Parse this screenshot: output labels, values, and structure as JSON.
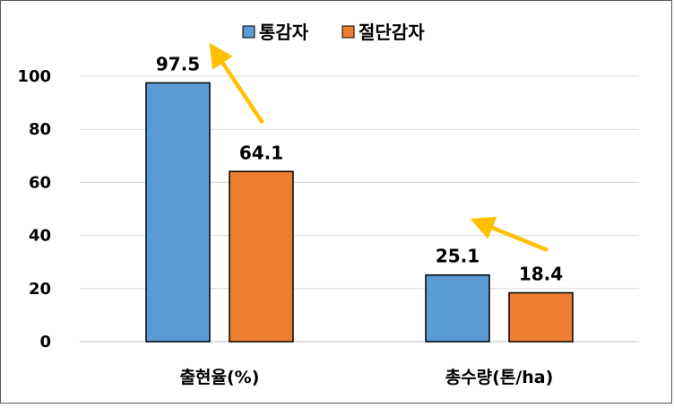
{
  "chart_data": {
    "type": "bar",
    "categories": [
      "출현율(%)",
      "총수량(톤/ha)"
    ],
    "series": [
      {
        "name": "통감자",
        "values": [
          97.5,
          25.1
        ],
        "color": "#5B9BD5"
      },
      {
        "name": "절단감자",
        "values": [
          64.1,
          18.4
        ],
        "color": "#ED7D31"
      }
    ],
    "ylim": [
      0,
      100
    ],
    "yticks": [
      0,
      20,
      40,
      60,
      80,
      100
    ],
    "grid": true,
    "legend": "top-center",
    "data_labels": [
      "97.5",
      "64.1",
      "25.1",
      "18.4"
    ],
    "annotations": [
      {
        "type": "arrow",
        "color": "#FFC000",
        "category": "출현율(%)"
      },
      {
        "type": "arrow",
        "color": "#FFC000",
        "category": "총수량(톤/ha)"
      }
    ]
  }
}
